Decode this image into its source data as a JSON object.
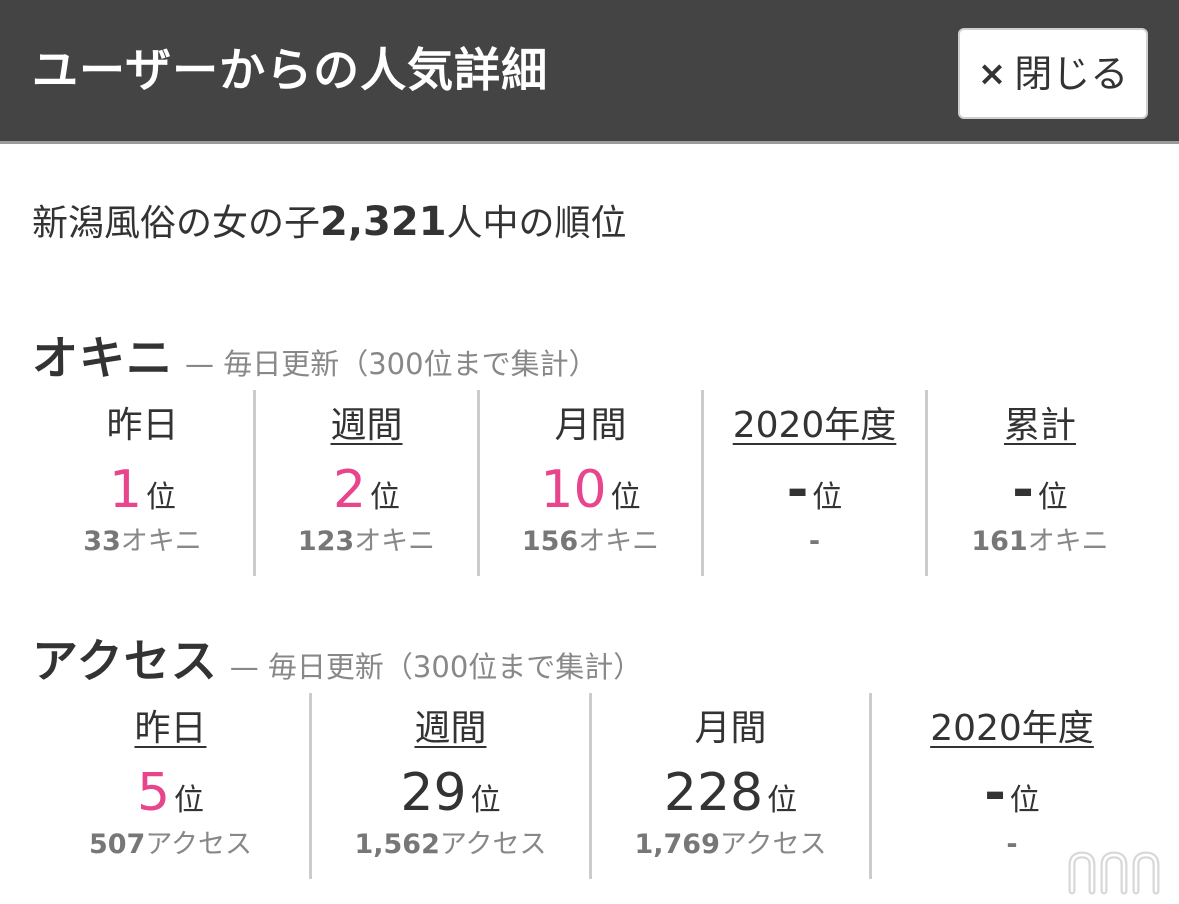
{
  "header": {
    "title": "ユーザーからの人気詳細",
    "close_icon": "×",
    "close_label": "閉じる"
  },
  "summary": {
    "prefix": "新潟風俗の女の子",
    "count": "2,321",
    "suffix": "人中の順位"
  },
  "okini": {
    "title": "オキニ",
    "note": "— 毎日更新（300位まで集計）",
    "cells": [
      {
        "label": "昨日",
        "link": false,
        "rank": "1",
        "pink": true,
        "unit": "位",
        "count": "33",
        "count_unit": "オキニ"
      },
      {
        "label": "週間",
        "link": true,
        "rank": "2",
        "pink": true,
        "unit": "位",
        "count": "123",
        "count_unit": "オキニ"
      },
      {
        "label": "月間",
        "link": false,
        "rank": "10",
        "pink": true,
        "unit": "位",
        "count": "156",
        "count_unit": "オキニ"
      },
      {
        "label": "2020年度",
        "link": true,
        "rank": "-",
        "pink": false,
        "unit": "位",
        "count": "-",
        "count_unit": ""
      },
      {
        "label": "累計",
        "link": true,
        "rank": "-",
        "pink": false,
        "unit": "位",
        "count": "161",
        "count_unit": "オキニ"
      }
    ]
  },
  "access": {
    "title": "アクセス",
    "note": "— 毎日更新（300位まで集計）",
    "cells": [
      {
        "label": "昨日",
        "link": true,
        "rank": "5",
        "pink": true,
        "unit": "位",
        "count": "507",
        "count_unit": "アクセス"
      },
      {
        "label": "週間",
        "link": true,
        "rank": "29",
        "pink": false,
        "unit": "位",
        "count": "1,562",
        "count_unit": "アクセス"
      },
      {
        "label": "月間",
        "link": false,
        "rank": "228",
        "pink": false,
        "unit": "位",
        "count": "1,769",
        "count_unit": "アクセス"
      },
      {
        "label": "2020年度",
        "link": true,
        "rank": "-",
        "pink": false,
        "unit": "位",
        "count": "-",
        "count_unit": ""
      }
    ]
  },
  "colors": {
    "header_bg": "#444444",
    "accent_pink": "#e8458c",
    "muted": "#888888"
  },
  "icons": {
    "close": "close-icon",
    "watermark": "brand-watermark-icon"
  }
}
